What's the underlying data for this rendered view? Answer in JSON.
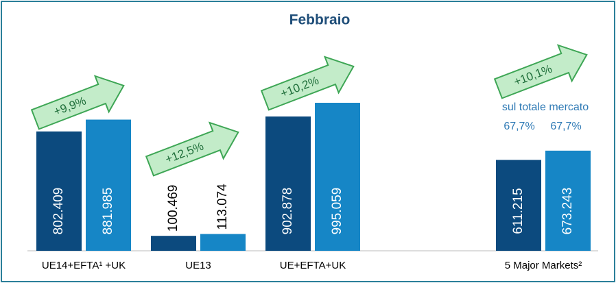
{
  "chart_data": {
    "type": "bar",
    "title": "Febbraio",
    "categories": [
      "UE14+EFTA¹ +UK",
      "UE13",
      "UE+EFTA+UK",
      "5 Major Markets²"
    ],
    "series": [
      {
        "color": "#0c4a7e",
        "values": [
          802409,
          100469,
          902878,
          611215
        ],
        "value_labels": [
          "802.409",
          "100.469",
          "902.878",
          "611.215"
        ]
      },
      {
        "color": "#1686c6",
        "values": [
          881985,
          113074,
          995059,
          673243
        ],
        "value_labels": [
          "881.985",
          "113.074",
          "995.059",
          "673.243"
        ]
      }
    ],
    "growth_labels": [
      "+9,9%",
      "+12,5%",
      "+10,2%",
      "+10,1%"
    ],
    "share_note": {
      "text": "sul totale mercato",
      "labels": [
        "67,7%",
        "67,7%"
      ]
    }
  }
}
